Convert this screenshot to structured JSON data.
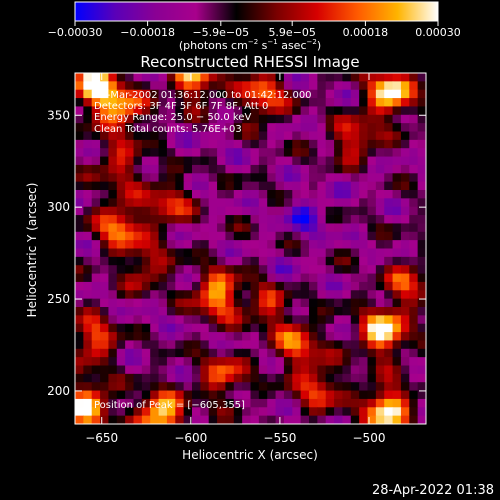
{
  "chart_data": {
    "type": "heatmap",
    "title": "Reconstructed RHESSI Image",
    "xlabel": "Heliocentric X (arcsec)",
    "ylabel": "Heliocentric Y (arcsec)",
    "xlim": [
      -665,
      -468
    ],
    "ylim": [
      182,
      373
    ],
    "x_ticks": [
      -650,
      -600,
      -550,
      -500
    ],
    "x_tick_labels": [
      "−650",
      "−600",
      "−550",
      "−500"
    ],
    "y_ticks": [
      200,
      250,
      300,
      350
    ],
    "y_tick_labels": [
      "200",
      "250",
      "300",
      "350"
    ],
    "grid": false,
    "colorbar": {
      "range": [
        -0.0003,
        0.0003
      ],
      "ticks": [
        -0.0003,
        -0.00018,
        -5.9e-05,
        5.9e-05,
        0.00018,
        0.0003
      ],
      "tick_labels": [
        "−0.00030",
        "−0.00018",
        "−5.9e−05",
        "5.9e−05",
        "0.00018",
        "0.00030"
      ],
      "unit_main": "(photons cm",
      "unit_sup1": "−2",
      "unit_mid": " s",
      "unit_sup2": "−1",
      "unit_end": " asec",
      "unit_sup3": "−2",
      "unit_close": ")",
      "colors": [
        "#0000ff",
        "#5a00b8",
        "#8a0094",
        "#a8008c",
        "#000000",
        "#7a0000",
        "#d60000",
        "#ff5a00",
        "#ffb400",
        "#ffffff"
      ]
    },
    "annotations": {
      "time_range": "30-Mar-2002 01:36:12.000 to 01:42:12.000",
      "detectors": "Detectors: 3F 4F 5F 6F 7F 8F, Att 0",
      "energy": "Energy Range: 25.0 − 50.0 keV",
      "clean": "Clean    Total counts: 5.76E+03",
      "peak": "Position of Peak = [−605,355]"
    },
    "peak": {
      "x": -605,
      "y": 355
    },
    "hotspots": [
      {
        "x": -653,
        "y": 365,
        "v": 0.0003
      },
      {
        "x": -598,
        "y": 370,
        "v": 0.00022
      },
      {
        "x": -560,
        "y": 360,
        "v": 0.00018
      },
      {
        "x": -488,
        "y": 362,
        "v": 0.0003
      },
      {
        "x": -508,
        "y": 335,
        "v": 0.00016
      },
      {
        "x": -640,
        "y": 322,
        "v": 0.0001
      },
      {
        "x": -640,
        "y": 290,
        "v": 0.0002
      },
      {
        "x": -613,
        "y": 302,
        "v": 0.00012
      },
      {
        "x": -585,
        "y": 252,
        "v": 0.00024
      },
      {
        "x": -555,
        "y": 248,
        "v": 0.00014
      },
      {
        "x": -540,
        "y": 225,
        "v": 0.00016
      },
      {
        "x": -492,
        "y": 232,
        "v": 0.0003
      },
      {
        "x": -478,
        "y": 258,
        "v": 0.00012
      },
      {
        "x": -655,
        "y": 228,
        "v": 0.00016
      },
      {
        "x": -625,
        "y": 268,
        "v": 0.0001
      },
      {
        "x": -658,
        "y": 192,
        "v": 0.00026
      },
      {
        "x": -617,
        "y": 186,
        "v": 0.0003
      },
      {
        "x": -582,
        "y": 208,
        "v": 0.00014
      },
      {
        "x": -528,
        "y": 202,
        "v": 0.00014
      },
      {
        "x": -490,
        "y": 190,
        "v": 0.0003
      },
      {
        "x": -638,
        "y": 352,
        "v": 0.00018
      }
    ],
    "coldspots": [
      {
        "x": -535,
        "y": 295,
        "v": -0.00022
      },
      {
        "x": -505,
        "y": 320,
        "v": -0.00016
      },
      {
        "x": -548,
        "y": 258,
        "v": -0.00018
      },
      {
        "x": -585,
        "y": 335,
        "v": -0.00012
      },
      {
        "x": -620,
        "y": 240,
        "v": -0.00012
      },
      {
        "x": -520,
        "y": 360,
        "v": -0.0001
      },
      {
        "x": -590,
        "y": 225,
        "v": -0.0001
      }
    ],
    "timestamp": "28-Apr-2022 01:38"
  }
}
